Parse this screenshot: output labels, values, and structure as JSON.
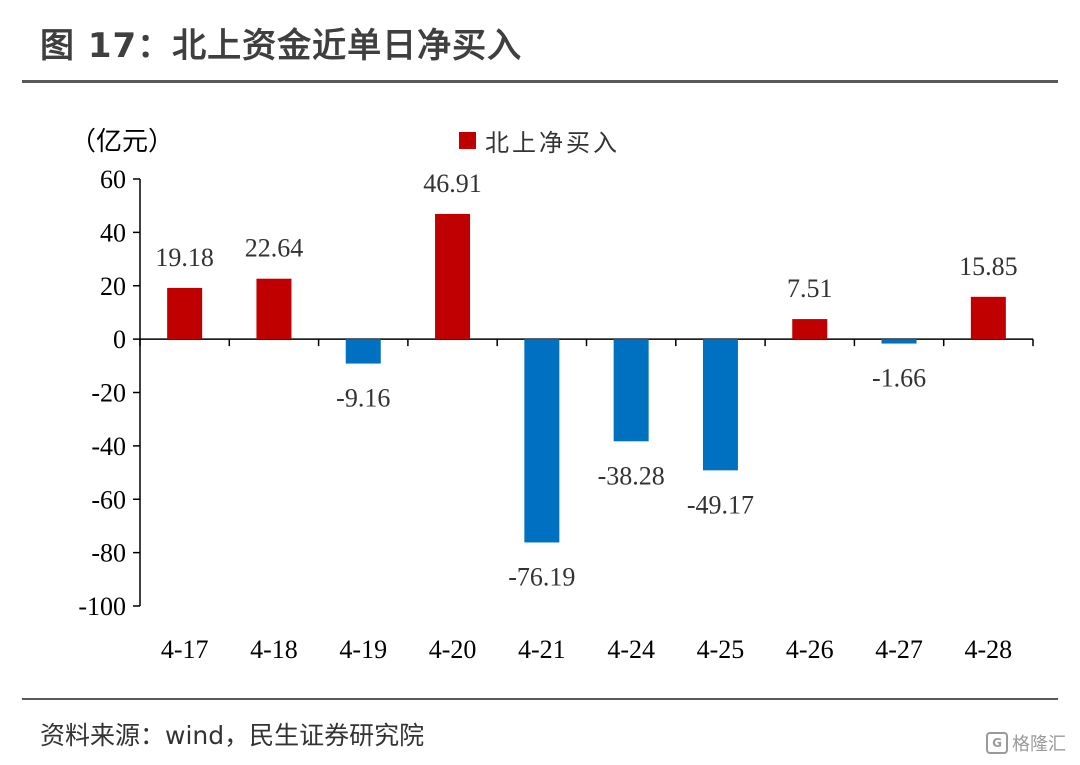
{
  "figure": {
    "title": "图 17：北上资金近单日净买入",
    "source": "资料来源：wind，民生证券研究院",
    "watermark": "格隆汇"
  },
  "colors": {
    "positive": "#C00000",
    "negative": "#0070C0",
    "axis": "#000000",
    "rule": "#595959"
  },
  "chart_data": {
    "type": "bar",
    "title": "北上资金近单日净买入",
    "unit_label": "（亿元）",
    "xlabel": "",
    "ylabel": "（亿元）",
    "ylim": [
      -100,
      60
    ],
    "yticks": [
      60,
      40,
      20,
      0,
      -20,
      -40,
      -60,
      -80,
      -100
    ],
    "grid": false,
    "legend": {
      "entries": [
        "北上净买入"
      ],
      "placement": "top-center"
    },
    "categories": [
      "4-17",
      "4-18",
      "4-19",
      "4-20",
      "4-21",
      "4-24",
      "4-25",
      "4-26",
      "4-27",
      "4-28"
    ],
    "series": [
      {
        "name": "北上净买入",
        "values": [
          19.18,
          22.64,
          -9.16,
          46.91,
          -76.19,
          -38.28,
          -49.17,
          7.51,
          -1.66,
          15.85
        ],
        "labels": [
          "19.18",
          "22.64",
          "-9.16",
          "46.91",
          "-76.19",
          "-38.28",
          "-49.17",
          "7.51",
          "-1.66",
          "15.85"
        ]
      }
    ]
  }
}
